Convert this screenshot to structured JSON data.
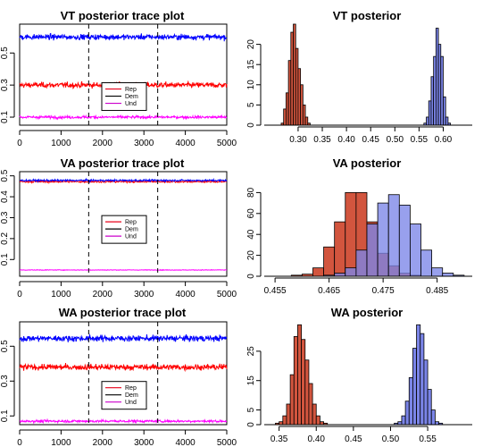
{
  "chart_data": [
    {
      "type": "line",
      "title": "VT posterior trace plot",
      "xlim": [
        0,
        5000
      ],
      "ylim": [
        0.05,
        0.68
      ],
      "xticks": [
        "0",
        "1000",
        "2000",
        "3000",
        "4000",
        "5000"
      ],
      "xtick_values": [
        0,
        1000,
        2000,
        3000,
        4000,
        5000
      ],
      "yticks": [
        "0.1",
        "0.3",
        "0.5"
      ],
      "ytick_values": [
        0.1,
        0.3,
        0.5
      ],
      "vlines": [
        1667,
        3333
      ],
      "legend": {
        "position": "center",
        "labels": [
          "Rep",
          "Dem",
          "Und"
        ],
        "colors": [
          "#e8001a",
          "#000000",
          "#cc00cc"
        ]
      },
      "series": [
        {
          "name": "Rep",
          "color": "#ff0000",
          "mean": 0.3,
          "sd": 0.012
        },
        {
          "name": "Dem",
          "color": "#0000ff",
          "mean": 0.6,
          "sd": 0.012
        },
        {
          "name": "Und",
          "color": "#ff00ff",
          "mean": 0.1,
          "sd": 0.006
        }
      ],
      "n_iter": 5000
    },
    {
      "type": "bar",
      "title": "VT posterior",
      "xlim": [
        0.23,
        0.66
      ],
      "ylim": [
        0,
        25
      ],
      "xticks": [
        "0.30",
        "0.35",
        "0.40",
        "0.45",
        "0.50",
        "0.55",
        "0.60"
      ],
      "xtick_values": [
        0.3,
        0.35,
        0.4,
        0.45,
        0.5,
        0.55,
        0.6
      ],
      "yticks": [
        "0",
        "5",
        "10",
        "15",
        "20"
      ],
      "ytick_values": [
        0,
        5,
        10,
        15,
        20
      ],
      "histograms": [
        {
          "color": "#d2553e",
          "start": 0.265,
          "width": 0.005,
          "values": [
            0.5,
            4,
            8,
            16,
            23,
            25,
            19,
            14,
            10,
            5,
            2,
            0.5
          ]
        },
        {
          "color": "#7b85e8",
          "start": 0.56,
          "width": 0.005,
          "values": [
            0.5,
            2,
            6,
            12,
            17,
            24,
            20,
            17,
            7,
            2,
            0.5
          ]
        }
      ]
    },
    {
      "type": "line",
      "title": "VA posterior trace plot",
      "xlim": [
        0,
        5000
      ],
      "ylim": [
        0.02,
        0.52
      ],
      "xticks": [
        "0",
        "1000",
        "2000",
        "3000",
        "4000",
        "5000"
      ],
      "xtick_values": [
        0,
        1000,
        2000,
        3000,
        4000,
        5000
      ],
      "yticks": [
        "0.1",
        "0.2",
        "0.3",
        "0.4",
        "0.5"
      ],
      "ytick_values": [
        0.1,
        0.2,
        0.3,
        0.4,
        0.5
      ],
      "vlines": [
        1667,
        3333
      ],
      "legend": {
        "position": "center",
        "labels": [
          "Rep",
          "Dem",
          "Und"
        ],
        "colors": [
          "#e8001a",
          "#000000",
          "#cc00cc"
        ]
      },
      "series": [
        {
          "name": "Rep",
          "color": "#ff0000",
          "mean": 0.472,
          "sd": 0.003
        },
        {
          "name": "Dem",
          "color": "#0000ff",
          "mean": 0.478,
          "sd": 0.003
        },
        {
          "name": "Und",
          "color": "#ff00ff",
          "mean": 0.05,
          "sd": 0.001
        }
      ],
      "n_iter": 5000
    },
    {
      "type": "bar",
      "title": "VA posterior",
      "xlim": [
        0.453,
        0.4915
      ],
      "ylim": [
        0,
        100
      ],
      "xticks": [
        "0.455",
        "0.465",
        "0.475",
        "0.485"
      ],
      "xtick_values": [
        0.455,
        0.465,
        0.475,
        0.485
      ],
      "yticks": [
        "0",
        "20",
        "40",
        "60",
        "80"
      ],
      "ytick_values": [
        0,
        20,
        40,
        60,
        80
      ],
      "histograms": [
        {
          "color": "#d2553e",
          "start": 0.458,
          "width": 0.002,
          "values": [
            1,
            2,
            8,
            28,
            52,
            80,
            80,
            52,
            22,
            10,
            3,
            1
          ]
        },
        {
          "color": "#7b85e8",
          "start": 0.464,
          "width": 0.002,
          "values": [
            1,
            3,
            8,
            25,
            50,
            70,
            78,
            68,
            50,
            25,
            8,
            3,
            1
          ]
        }
      ]
    },
    {
      "type": "line",
      "title": "WA posterior trace plot",
      "xlim": [
        0,
        5000
      ],
      "ylim": [
        0.05,
        0.64
      ],
      "xticks": [
        "0",
        "1000",
        "2000",
        "3000",
        "4000",
        "5000"
      ],
      "xtick_values": [
        0,
        1000,
        2000,
        3000,
        4000,
        5000
      ],
      "yticks": [
        "0.1",
        "0.3",
        "0.5"
      ],
      "ytick_values": [
        0.1,
        0.3,
        0.5
      ],
      "vlines": [
        1667,
        3333
      ],
      "legend": {
        "position": "center",
        "labels": [
          "Rep",
          "Dem",
          "Und"
        ],
        "colors": [
          "#e8001a",
          "#000000",
          "#cc00cc"
        ]
      },
      "series": [
        {
          "name": "Rep",
          "color": "#ff0000",
          "mean": 0.38,
          "sd": 0.012
        },
        {
          "name": "Dem",
          "color": "#0000ff",
          "mean": 0.545,
          "sd": 0.012
        },
        {
          "name": "Und",
          "color": "#ff00ff",
          "mean": 0.07,
          "sd": 0.005
        }
      ],
      "n_iter": 5000
    },
    {
      "type": "bar",
      "title": "WA posterior",
      "xlim": [
        0.33,
        0.61
      ],
      "ylim": [
        0,
        35
      ],
      "xticks": [
        "0.35",
        "0.40",
        "0.45",
        "0.50",
        "0.55"
      ],
      "xtick_values": [
        0.35,
        0.4,
        0.45,
        0.5,
        0.55
      ],
      "yticks": [
        "0",
        "5",
        "15",
        "25"
      ],
      "ytick_values": [
        0,
        5,
        15,
        25
      ],
      "histograms": [
        {
          "color": "#d2553e",
          "start": 0.345,
          "width": 0.005,
          "values": [
            0.5,
            1,
            3,
            7,
            17,
            30,
            34,
            29,
            22,
            14,
            7,
            3,
            1,
            0.5
          ]
        },
        {
          "color": "#7b85e8",
          "start": 0.505,
          "width": 0.005,
          "values": [
            0.5,
            1,
            3,
            8,
            16,
            26,
            34,
            31,
            22,
            12,
            5,
            1,
            0.5
          ]
        }
      ]
    }
  ]
}
